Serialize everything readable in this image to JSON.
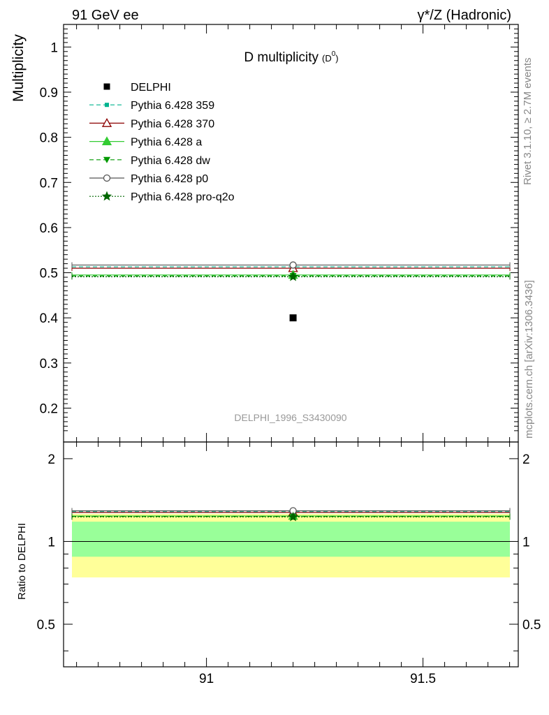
{
  "header": {
    "left": "91 GeV ee",
    "right": "γ*/Z (Hadronic)"
  },
  "side_texts": {
    "rivet": "Rivet 3.1.10, ≥ 2.7M events",
    "mcplots": "mcplots.cern.ch [arXiv:1306.3436]"
  },
  "colors": {
    "data": "#000000",
    "p359": "#00b38f",
    "p370": "#8b0000",
    "pa": "#33cc33",
    "pdw": "#009900",
    "pp0": "#555555",
    "pq2o": "#006600",
    "band_inner": "#99ff99",
    "band_outer": "#ffff99"
  },
  "chart_data": [
    {
      "type": "scatter",
      "title": "D multiplicity",
      "title_sub": "(D",
      "title_sup": "0",
      "title_close": ")",
      "ylabel": "Multiplicity",
      "watermark": "DELPHI_1996_S3430090",
      "ylim": [
        0.125,
        1.05
      ],
      "xlim": [
        90.67,
        91.72
      ],
      "yticks": [
        0.2,
        0.3,
        0.4,
        0.5,
        0.6,
        0.7,
        0.8,
        0.9,
        1.0
      ],
      "ytick_labels": [
        "0.2",
        "0.3",
        "0.4",
        "0.5",
        "0.6",
        "0.7",
        "0.8",
        "0.9",
        "1"
      ],
      "legend_position": "top-left",
      "series": [
        {
          "name": "DELPHI",
          "x": [
            91.2
          ],
          "y": [
            0.4
          ],
          "marker": "square",
          "line": "none",
          "color_key": "data"
        },
        {
          "name": "Pythia 6.428 359",
          "x": [
            91.2
          ],
          "y": [
            0.513
          ],
          "marker": "smallsquare",
          "line": "dashed",
          "color_key": "p359"
        },
        {
          "name": "Pythia 6.428 370",
          "x": [
            91.2
          ],
          "y": [
            0.51
          ],
          "marker": "open-triangle",
          "line": "solid",
          "color_key": "p370"
        },
        {
          "name": "Pythia 6.428 a",
          "x": [
            91.2
          ],
          "y": [
            0.495
          ],
          "marker": "triangle",
          "line": "solid",
          "color_key": "pa"
        },
        {
          "name": "Pythia 6.428 dw",
          "x": [
            91.2
          ],
          "y": [
            0.493
          ],
          "marker": "down-triangle",
          "line": "dashed",
          "color_key": "pdw"
        },
        {
          "name": "Pythia 6.428 p0",
          "x": [
            91.2
          ],
          "y": [
            0.517
          ],
          "marker": "open-circle",
          "line": "solid",
          "color_key": "pp0"
        },
        {
          "name": "Pythia 6.428 pro-q2o",
          "x": [
            91.2
          ],
          "y": [
            0.491
          ],
          "marker": "star",
          "line": "dotted",
          "color_key": "pq2o"
        }
      ]
    },
    {
      "type": "scatter",
      "ylabel": "Ratio to DELPHI",
      "ylim": [
        0.35,
        2.3
      ],
      "xlim": [
        90.67,
        91.72
      ],
      "yticks": [
        0.5,
        1.0,
        2.0
      ],
      "ytick_labels": [
        "0.5",
        "1",
        "2"
      ],
      "xticks": [
        91.0,
        91.5
      ],
      "xtick_labels": [
        "91",
        "91.5"
      ],
      "bands": {
        "inner": [
          0.88,
          1.18
        ],
        "outer": [
          0.74,
          1.26
        ]
      },
      "series": [
        {
          "name": "Pythia 6.428 359",
          "x": [
            91.2
          ],
          "y": [
            1.283
          ],
          "marker": "smallsquare",
          "line": "dashed",
          "color_key": "p359"
        },
        {
          "name": "Pythia 6.428 370",
          "x": [
            91.2
          ],
          "y": [
            1.275
          ],
          "marker": "open-triangle",
          "line": "solid",
          "color_key": "p370"
        },
        {
          "name": "Pythia 6.428 a",
          "x": [
            91.2
          ],
          "y": [
            1.238
          ],
          "marker": "triangle",
          "line": "solid",
          "color_key": "pa"
        },
        {
          "name": "Pythia 6.428 dw",
          "x": [
            91.2
          ],
          "y": [
            1.233
          ],
          "marker": "down-triangle",
          "line": "dashed",
          "color_key": "pdw"
        },
        {
          "name": "Pythia 6.428 p0",
          "x": [
            91.2
          ],
          "y": [
            1.293
          ],
          "marker": "open-circle",
          "line": "solid",
          "color_key": "pp0"
        },
        {
          "name": "Pythia 6.428 pro-q2o",
          "x": [
            91.2
          ],
          "y": [
            1.228
          ],
          "marker": "star",
          "line": "dotted",
          "color_key": "pq2o"
        }
      ]
    }
  ]
}
